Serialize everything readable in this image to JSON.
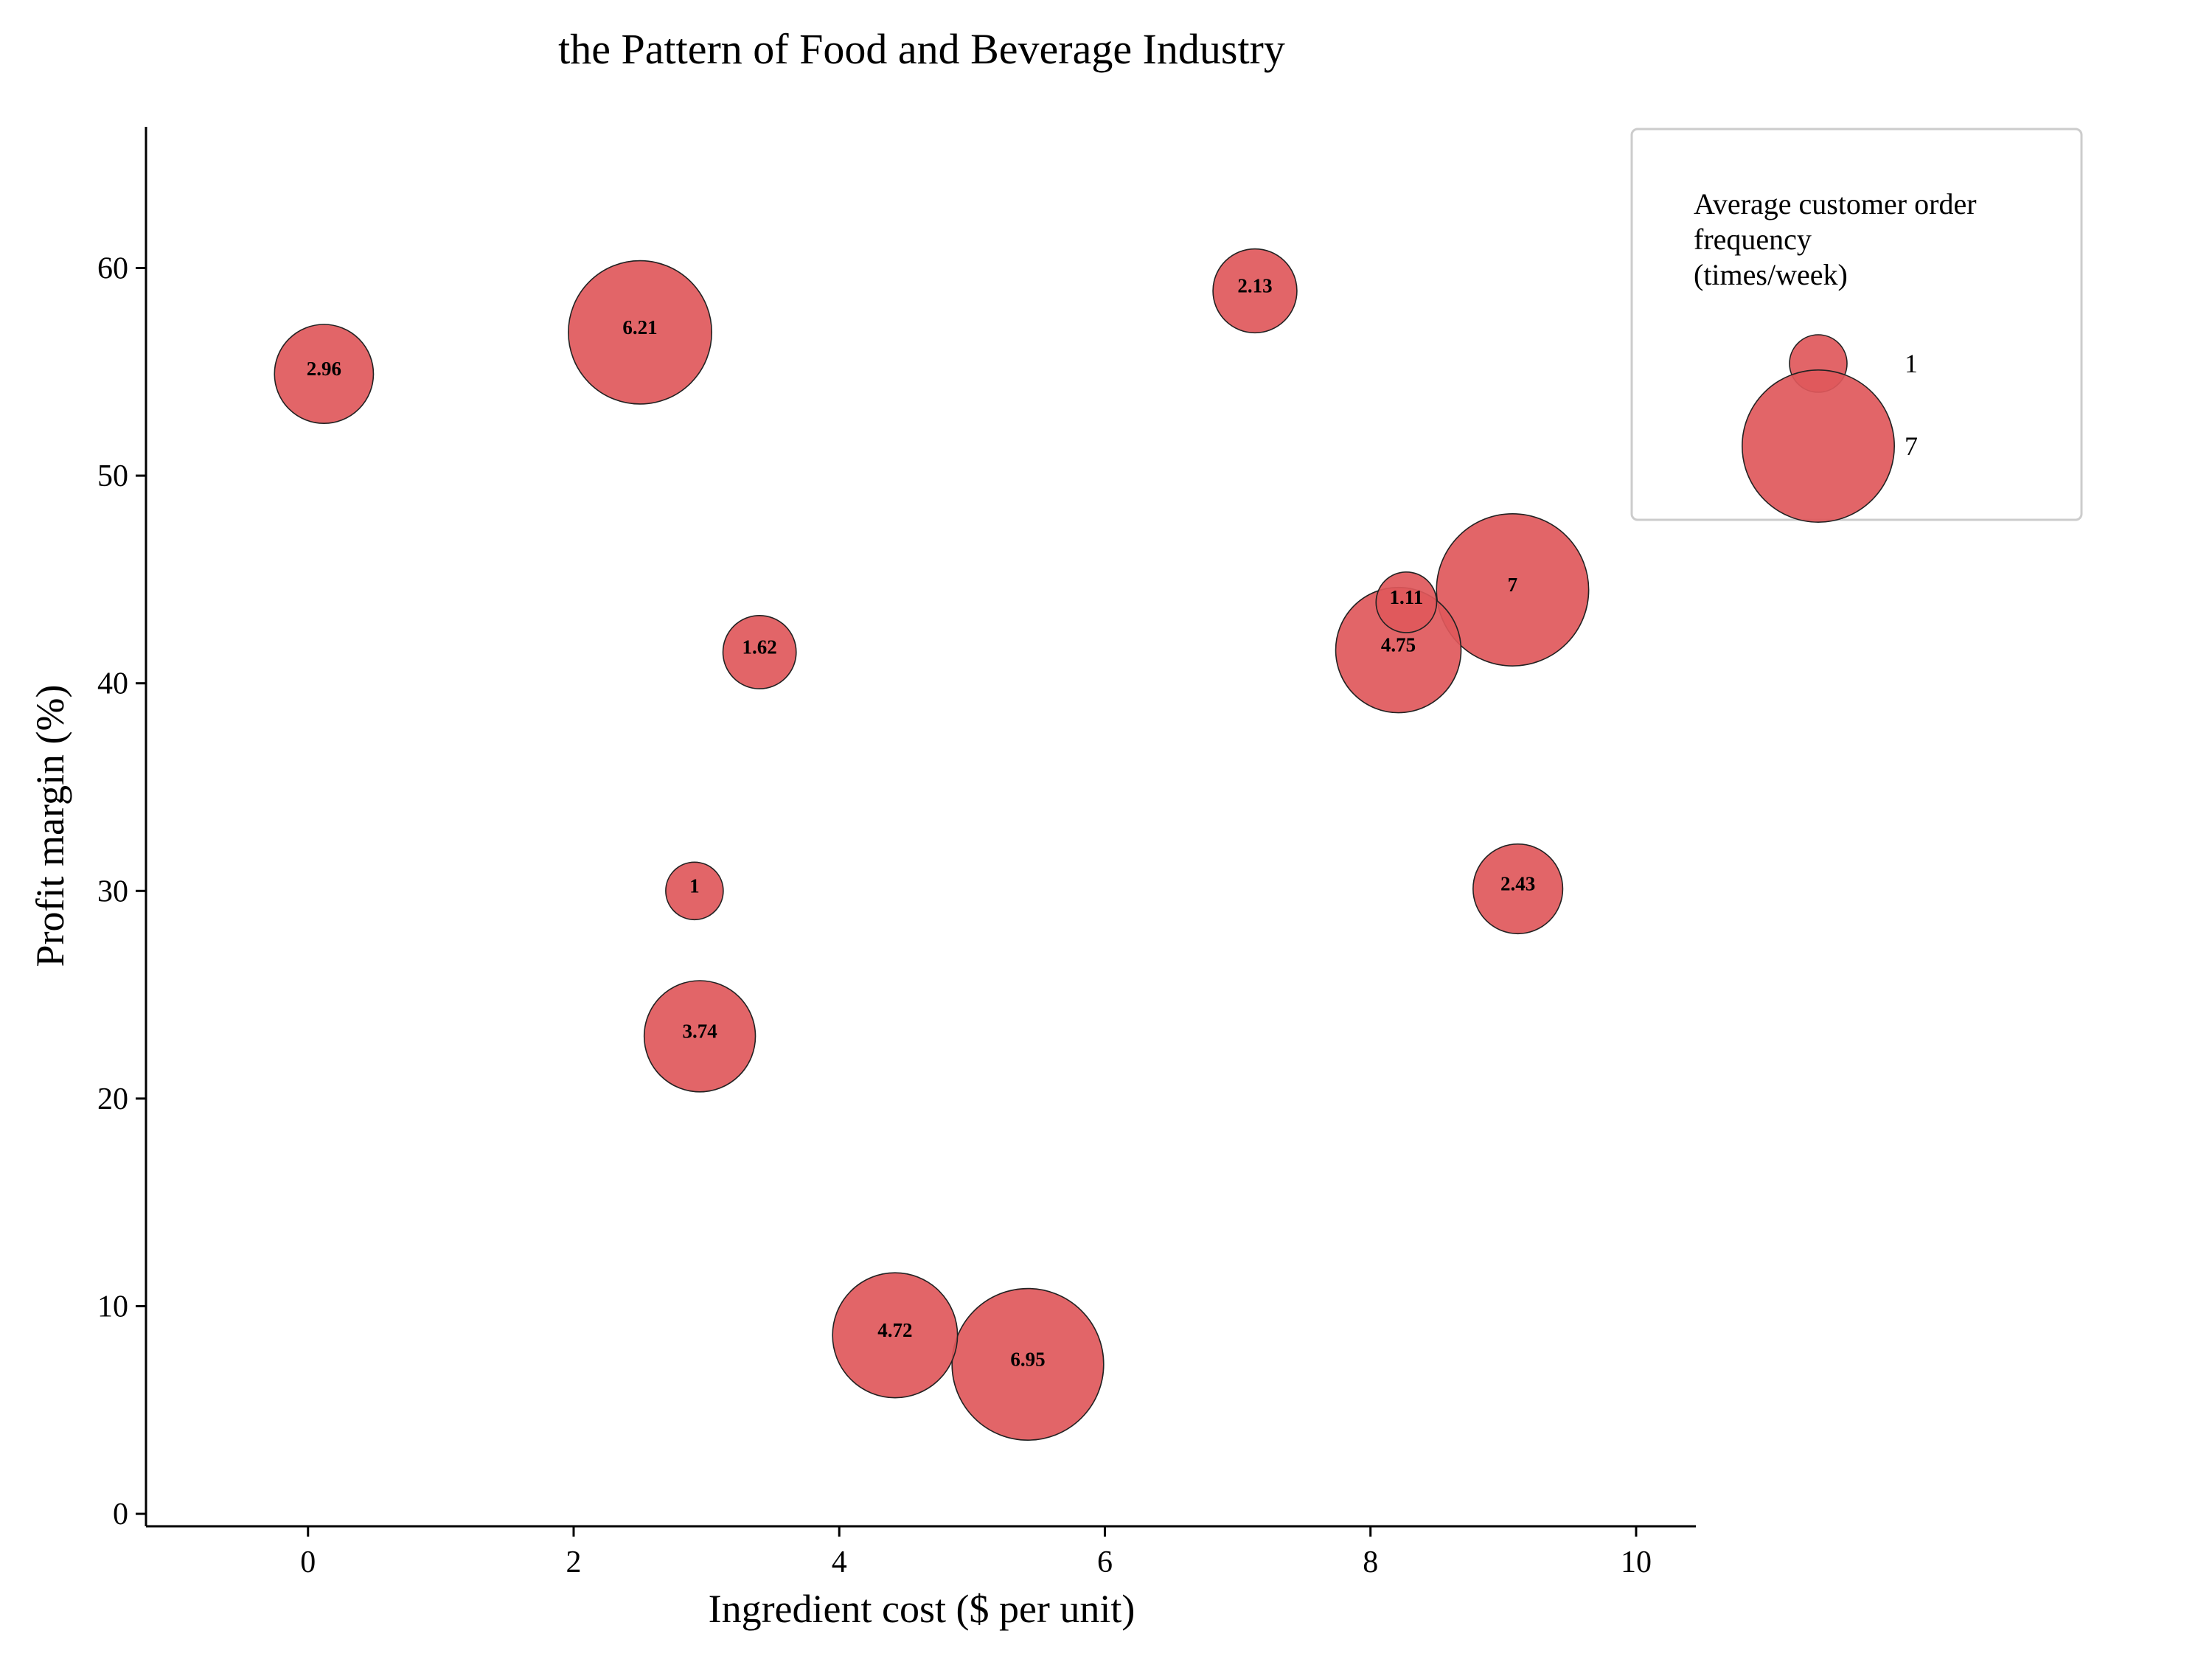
{
  "chart_data": {
    "type": "scatter",
    "title": "the Pattern of Food and Beverage Industry",
    "xlabel": "Ingredient cost ($ per unit)",
    "ylabel": "Profit margin (%)",
    "xlim": [
      -1.22,
      10.45
    ],
    "ylim": [
      -0.6,
      66.8
    ],
    "xticks": [
      0,
      2,
      4,
      6,
      8,
      10
    ],
    "yticks": [
      0,
      10,
      20,
      30,
      40,
      50,
      60
    ],
    "xtick_labels": [
      "0",
      "2",
      "4",
      "6",
      "8",
      "10"
    ],
    "ytick_labels": [
      "0",
      "10",
      "20",
      "30",
      "40",
      "50",
      "60"
    ],
    "grid": false,
    "bubble_color": "#e0585b",
    "edge_color": "#222222",
    "size_field": "Average customer order frequency (times/week)",
    "points": [
      {
        "x": 0.12,
        "y": 54.9,
        "size": 2.96,
        "label": "2.96"
      },
      {
        "x": 2.5,
        "y": 56.9,
        "size": 6.21,
        "label": "6.21"
      },
      {
        "x": 7.13,
        "y": 58.9,
        "size": 2.13,
        "label": "2.13"
      },
      {
        "x": 3.4,
        "y": 41.5,
        "size": 1.62,
        "label": "1.62"
      },
      {
        "x": 8.27,
        "y": 43.9,
        "size": 1.11,
        "label": "1.11"
      },
      {
        "x": 8.21,
        "y": 41.6,
        "size": 4.75,
        "label": "4.75"
      },
      {
        "x": 9.07,
        "y": 44.5,
        "size": 7.0,
        "label": "7"
      },
      {
        "x": 2.91,
        "y": 30.0,
        "size": 1.0,
        "label": "1"
      },
      {
        "x": 9.11,
        "y": 30.1,
        "size": 2.43,
        "label": "2.43"
      },
      {
        "x": 2.95,
        "y": 23.0,
        "size": 3.74,
        "label": "3.74"
      },
      {
        "x": 4.42,
        "y": 8.6,
        "size": 4.72,
        "label": "4.72"
      },
      {
        "x": 5.42,
        "y": 7.2,
        "size": 6.95,
        "label": "6.95"
      }
    ],
    "legend": {
      "title_lines": [
        "Average customer order",
        "frequency",
        "(times/week)"
      ],
      "placement": "top-right",
      "entries": [
        {
          "size": 1,
          "label": "1"
        },
        {
          "size": 7,
          "label": "7"
        }
      ]
    }
  }
}
